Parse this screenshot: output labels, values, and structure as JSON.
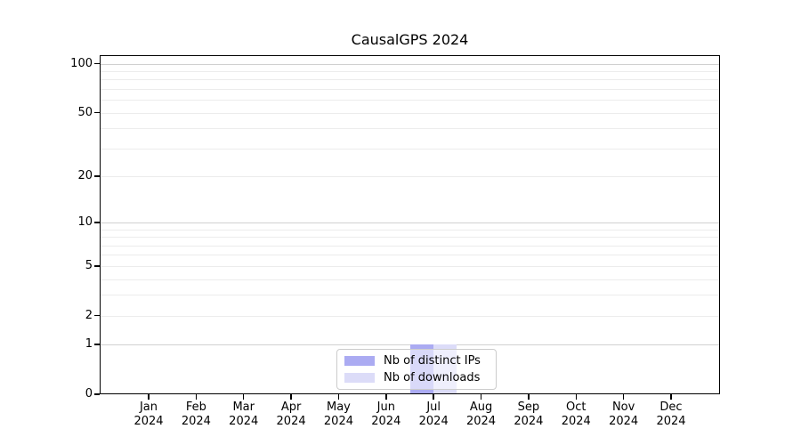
{
  "chart_data": {
    "type": "bar",
    "title": "CausalGPS 2024",
    "x_categories": [
      "Jan",
      "Feb",
      "Mar",
      "Apr",
      "May",
      "Jun",
      "Jul",
      "Aug",
      "Sep",
      "Oct",
      "Nov",
      "Dec"
    ],
    "x_year_label": "2024",
    "series": [
      {
        "name": "Nb of distinct IPs",
        "color": "#ababf2",
        "values": [
          0,
          0,
          0,
          0,
          0,
          0,
          1,
          0,
          0,
          0,
          0,
          0
        ]
      },
      {
        "name": "Nb of downloads",
        "color": "#dcdcf8",
        "values": [
          0,
          0,
          0,
          0,
          0,
          0,
          1,
          0,
          0,
          0,
          0,
          0
        ]
      }
    ],
    "y_scale": "log1p",
    "y_ticks": [
      0,
      1,
      2,
      5,
      10,
      20,
      50,
      100
    ],
    "y_max": 113,
    "grid_major": [
      1,
      10,
      100
    ],
    "grid_minor": [
      2,
      3,
      4,
      5,
      6,
      7,
      8,
      9,
      20,
      30,
      40,
      50,
      60,
      70,
      80,
      90
    ],
    "legend_position": "lower center",
    "colors": {
      "grid_major": "#d0d0d0",
      "grid_minor": "#ececec",
      "spine": "#000000",
      "legend_border": "#cccccc",
      "text": "#000000"
    }
  }
}
